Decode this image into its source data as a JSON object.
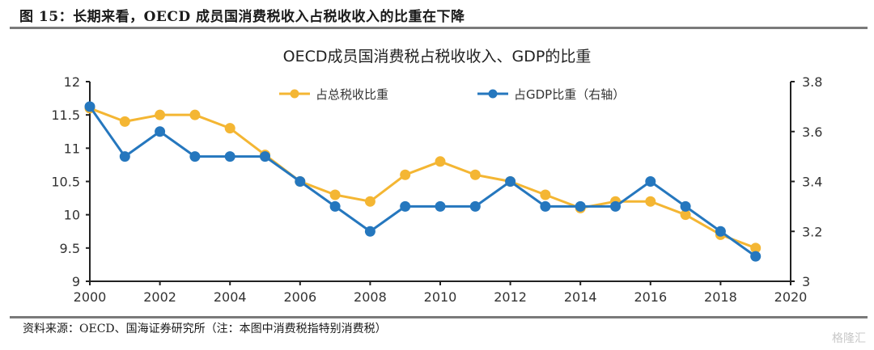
{
  "figure": {
    "title": "图 15：长期来看，OECD 成员国消费税收入占税收收入的比重在下降",
    "source": "资料来源：OECD、国海证券研究所（注：本图中消费税指特别消费税）",
    "watermark": "格隆汇"
  },
  "chart_data": {
    "type": "line",
    "title": "OECD成员国消费税占税收收入、GDP的比重",
    "xlabel": "",
    "ylabel": "",
    "y2label": "",
    "x": [
      2000,
      2001,
      2002,
      2003,
      2004,
      2005,
      2006,
      2007,
      2008,
      2009,
      2010,
      2011,
      2012,
      2013,
      2014,
      2015,
      2016,
      2017,
      2018,
      2019
    ],
    "xlim": [
      2000,
      2020
    ],
    "xticks": [
      "2000",
      "2002",
      "2004",
      "2006",
      "2008",
      "2010",
      "2012",
      "2014",
      "2016",
      "2018",
      "2020"
    ],
    "ylim": [
      9,
      12
    ],
    "yticks": [
      "9",
      "9.5",
      "10",
      "10.5",
      "11",
      "11.5",
      "12"
    ],
    "y2lim": [
      3,
      3.8
    ],
    "y2ticks": [
      "3",
      "3.2",
      "3.4",
      "3.6",
      "3.8"
    ],
    "grid": false,
    "legend_position": "top-center",
    "series": [
      {
        "name": "占总税收比重",
        "axis": "left",
        "color": "#F4B633",
        "values": [
          11.6,
          11.4,
          11.5,
          11.5,
          11.3,
          10.9,
          10.5,
          10.3,
          10.2,
          10.6,
          10.8,
          10.6,
          10.5,
          10.3,
          10.1,
          10.2,
          10.2,
          10.0,
          9.7,
          9.5
        ]
      },
      {
        "name": "占GDP比重（右轴）",
        "axis": "right",
        "color": "#2577BE",
        "values": [
          3.7,
          3.5,
          3.6,
          3.5,
          3.5,
          3.5,
          3.4,
          3.3,
          3.2,
          3.3,
          3.3,
          3.3,
          3.4,
          3.3,
          3.3,
          3.3,
          3.4,
          3.3,
          3.2,
          3.1
        ]
      }
    ]
  }
}
